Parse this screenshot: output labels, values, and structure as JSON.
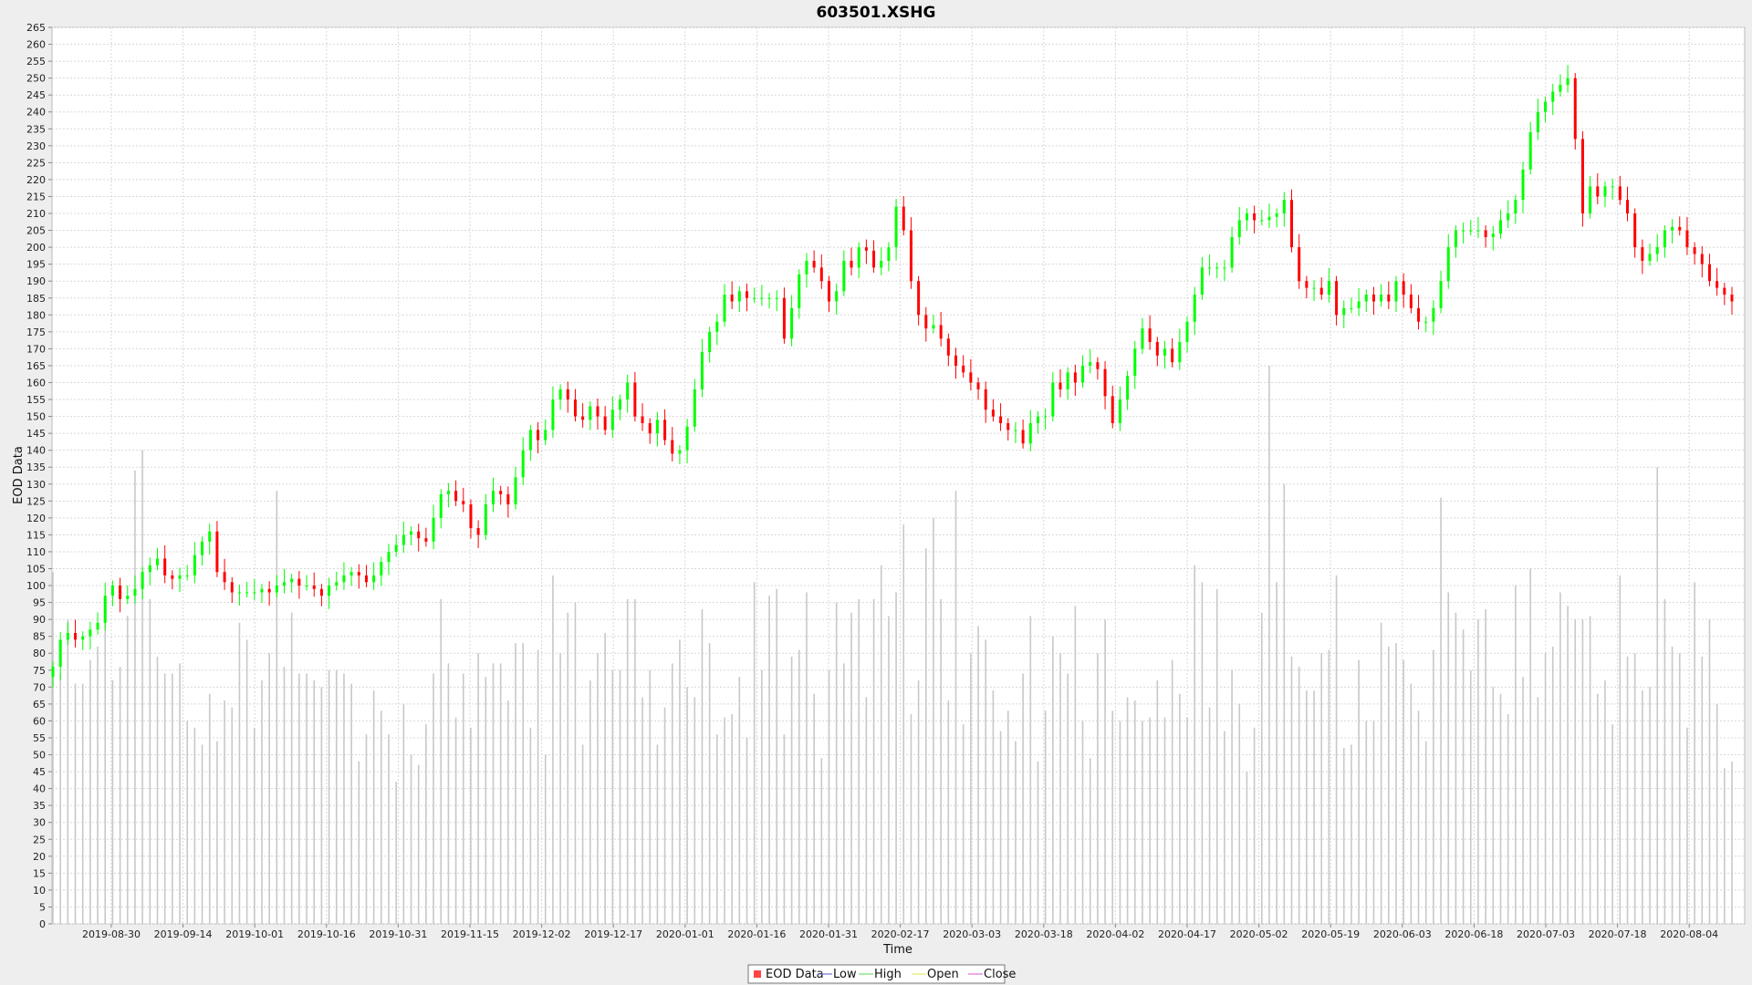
{
  "chart_data": {
    "type": "candlestick",
    "title": "603501.XSHG",
    "xlabel": "Time",
    "ylabel": "EOD Data",
    "ylim": [
      0,
      265
    ],
    "y_tick_step": 5,
    "x_tick_labels": [
      "2019-08-30",
      "2019-09-14",
      "2019-10-01",
      "2019-10-16",
      "2019-10-31",
      "2019-11-15",
      "2019-12-02",
      "2019-12-17",
      "2020-01-01",
      "2020-01-16",
      "2020-01-31",
      "2020-02-17",
      "2020-03-03",
      "2020-03-18",
      "2020-04-02",
      "2020-04-17",
      "2020-05-02",
      "2020-05-19",
      "2020-06-03",
      "2020-06-18",
      "2020-07-03",
      "2020-07-18",
      "2020-08-04"
    ],
    "grid": true,
    "legend_position": "bottom",
    "legend": [
      {
        "label": "EOD Data",
        "color": "#ff4444",
        "kind": "box"
      },
      {
        "label": "Low",
        "color": "#7070c8",
        "kind": "line"
      },
      {
        "label": "High",
        "color": "#70e070",
        "kind": "line"
      },
      {
        "label": "Open",
        "color": "#e8e860",
        "kind": "line"
      },
      {
        "label": "Close",
        "color": "#e070e0",
        "kind": "line"
      }
    ],
    "colors": {
      "up": "#00ff00",
      "down": "#ff0000",
      "volume": "#c8c8c8",
      "grid": "#d8d8d8",
      "plot_bg": "#ffffff"
    },
    "close_prices": [
      76,
      84,
      86,
      84,
      85,
      87,
      89,
      97,
      100,
      96,
      97,
      99,
      104,
      106,
      108,
      103,
      102,
      103,
      103,
      109,
      113,
      116,
      104,
      101,
      98,
      98,
      98,
      98,
      99,
      98,
      100,
      101,
      102,
      100,
      100,
      99,
      97,
      100,
      101,
      103,
      104,
      103,
      101,
      103,
      107,
      110,
      112,
      115,
      116,
      114,
      113,
      120,
      127,
      128,
      125,
      124,
      117,
      115,
      124,
      128,
      127,
      124,
      132,
      140,
      146,
      143,
      146,
      155,
      158,
      155,
      150,
      149,
      153,
      150,
      146,
      152,
      155,
      160,
      150,
      148,
      145,
      149,
      143,
      139,
      140,
      147,
      158,
      169,
      175,
      178,
      186,
      184,
      187,
      185,
      185,
      185,
      185,
      185,
      173,
      182,
      192,
      196,
      194,
      190,
      184,
      187,
      196,
      194,
      200,
      199,
      194,
      196,
      200,
      212,
      205,
      190,
      180,
      176,
      177,
      173,
      168,
      165,
      163,
      160,
      158,
      152,
      150,
      148,
      146,
      146,
      142,
      148,
      150,
      150,
      160,
      158,
      163,
      160,
      165,
      166,
      164,
      156,
      148,
      155,
      162,
      170,
      176,
      172,
      168,
      170,
      166,
      172,
      178,
      186,
      194,
      194,
      194,
      194,
      203,
      208,
      210,
      208,
      208,
      209,
      210,
      214,
      200,
      190,
      188,
      188,
      186,
      190,
      180,
      182,
      182,
      184,
      186,
      184,
      186,
      184,
      190,
      186,
      182,
      178,
      178,
      182,
      190,
      200,
      205,
      205,
      205,
      205,
      203,
      204,
      208,
      210,
      214,
      223,
      234,
      240,
      243,
      246,
      248,
      250,
      232,
      210,
      218,
      215,
      218,
      218,
      214,
      210,
      200,
      196,
      198,
      200,
      205,
      206,
      205,
      200,
      198,
      195,
      190,
      188,
      186,
      184
    ],
    "volumes": [
      104,
      74,
      90,
      71,
      71,
      78,
      82,
      90,
      72,
      76,
      91,
      134,
      140,
      96,
      79,
      74,
      74,
      77,
      60,
      58,
      53,
      68,
      54,
      66,
      64,
      89,
      84,
      58,
      72,
      80,
      128,
      76,
      92,
      74,
      74,
      72,
      70,
      75,
      75,
      74,
      71,
      48,
      56,
      69,
      63,
      56,
      42,
      65,
      50,
      47,
      59,
      74,
      96,
      77,
      61,
      74,
      58,
      80,
      73,
      77,
      77,
      66,
      83,
      83,
      58,
      81,
      50,
      103,
      80,
      92,
      95,
      53,
      72,
      80,
      86,
      75,
      75,
      96,
      96,
      67,
      75,
      53,
      64,
      77,
      84,
      70,
      67,
      93,
      83,
      56,
      61,
      62,
      73,
      55,
      101,
      75,
      97,
      99,
      56,
      79,
      81,
      98,
      68,
      49,
      75,
      95,
      77,
      92,
      96,
      67,
      96,
      106,
      91,
      98,
      118,
      62,
      72,
      111,
      120,
      96,
      66,
      128,
      59,
      80,
      88,
      84,
      69,
      57,
      63,
      54,
      74,
      91,
      48,
      63,
      85,
      80,
      74,
      94,
      60,
      49,
      80,
      90,
      63,
      60,
      67,
      66,
      60,
      61,
      72,
      61,
      78,
      68,
      61,
      106,
      101,
      64,
      99,
      57,
      75,
      65,
      45,
      58,
      92,
      165,
      101,
      130,
      79,
      76,
      69,
      69,
      80,
      81,
      103,
      52,
      53,
      78,
      60,
      60,
      89,
      82,
      83,
      78,
      71,
      63,
      54,
      81,
      126,
      98,
      92,
      87,
      75,
      90,
      93,
      70,
      68,
      62,
      100,
      73,
      105,
      67,
      80,
      82,
      98,
      94,
      90,
      90,
      91,
      68,
      72,
      59,
      103,
      79,
      80,
      69,
      70,
      135,
      96,
      82,
      80,
      58,
      101,
      79,
      90,
      65,
      46,
      48
    ],
    "volume_note": "bars drawn in the same 0-265 axis units"
  }
}
